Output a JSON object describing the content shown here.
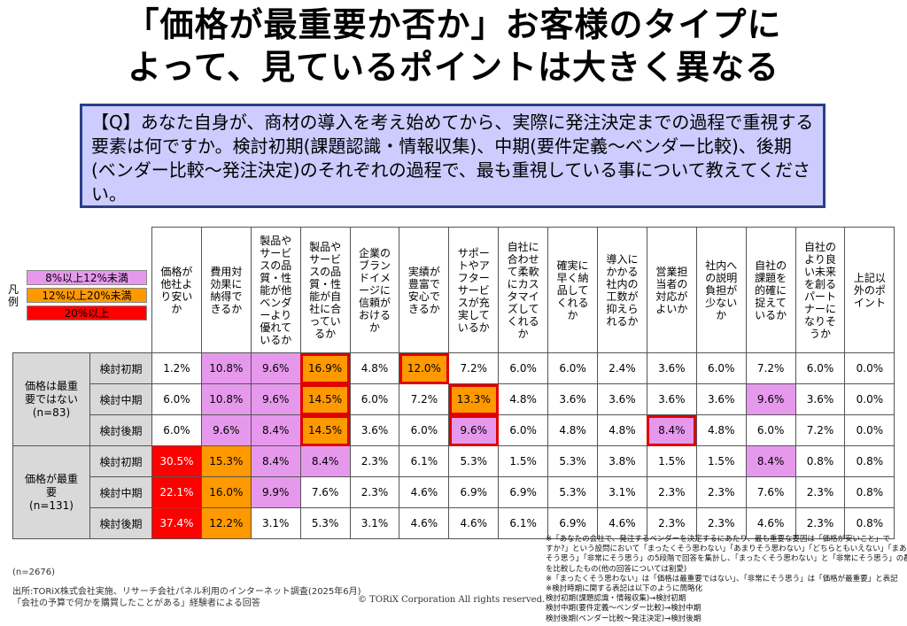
{
  "title": {
    "line1": "「価格が最重要か否か」お客様のタイプに",
    "line2": "よって、見ているポイントは大きく異なる"
  },
  "question": "【Q】あなた自身が、商材の導入を考え始めてから、実際に発注決定までの過程で重視する要素は何ですか。検討初期(課題認識・情報収集)、中期(要件定義〜ベンダー比較)、後期(ベンダー比較〜発注決定)のそれぞれの過程で、最も重視している事について教えてください。",
  "legend": {
    "label": "凡例",
    "items": [
      {
        "text": "8%以上12%未満",
        "color": "#e699ec"
      },
      {
        "text": "12%以上20%未満",
        "color": "#ff9900"
      },
      {
        "text": "20%以上",
        "color": "#ff0000"
      }
    ]
  },
  "chart_data": {
    "type": "table",
    "columns": [
      "価格が他社より安いか",
      "費用対効果に納得できるか",
      "製品やサービスの品質・性能が他ベンダーより優れているか",
      "製品やサービスの品質・性能が自社に合っているか",
      "企業のブランドイメージに信頼がおけるか",
      "実績が豊富で安心できるか",
      "サポートやアフターサービスが充実しているか",
      "自社に合わせて柔軟にカスタマイズしてくれるか",
      "確実に早く納品してくれるか",
      "導入にかかる社内の工数が抑えられるか",
      "営業担当者の対応がよいか",
      "社内への説明負担が少ないか",
      "自社の課題を的確に捉えているか",
      "自社のより良い未来を創るパートナーになりそうか",
      "上記以外のポイント"
    ],
    "groups": [
      {
        "name": "価格は最重要ではない",
        "n": "(n=83)",
        "rows": [
          {
            "phase": "検討初期",
            "values": [
              "1.2%",
              "10.8%",
              "9.6%",
              "16.9%",
              "4.8%",
              "12.0%",
              "7.2%",
              "6.0%",
              "6.0%",
              "2.4%",
              "3.6%",
              "6.0%",
              "7.2%",
              "6.0%",
              "0.0%"
            ],
            "highlight": [
              3,
              5
            ]
          },
          {
            "phase": "検討中期",
            "values": [
              "6.0%",
              "10.8%",
              "9.6%",
              "14.5%",
              "6.0%",
              "7.2%",
              "13.3%",
              "4.8%",
              "3.6%",
              "3.6%",
              "3.6%",
              "3.6%",
              "9.6%",
              "3.6%",
              "0.0%"
            ],
            "highlight": [
              3,
              6
            ]
          },
          {
            "phase": "検討後期",
            "values": [
              "6.0%",
              "9.6%",
              "8.4%",
              "14.5%",
              "3.6%",
              "6.0%",
              "9.6%",
              "6.0%",
              "4.8%",
              "4.8%",
              "8.4%",
              "4.8%",
              "6.0%",
              "7.2%",
              "0.0%"
            ],
            "highlight": [
              3,
              6,
              10
            ]
          }
        ]
      },
      {
        "name": "価格が最重要",
        "n": "(n=131)",
        "rows": [
          {
            "phase": "検討初期",
            "values": [
              "30.5%",
              "15.3%",
              "8.4%",
              "8.4%",
              "2.3%",
              "6.1%",
              "5.3%",
              "1.5%",
              "5.3%",
              "3.8%",
              "1.5%",
              "1.5%",
              "8.4%",
              "0.8%",
              "0.8%"
            ],
            "highlight": []
          },
          {
            "phase": "検討中期",
            "values": [
              "22.1%",
              "16.0%",
              "9.9%",
              "7.6%",
              "2.3%",
              "4.6%",
              "6.9%",
              "6.9%",
              "5.3%",
              "3.1%",
              "2.3%",
              "2.3%",
              "7.6%",
              "2.3%",
              "0.8%"
            ],
            "highlight": []
          },
          {
            "phase": "検討後期",
            "values": [
              "37.4%",
              "12.2%",
              "3.1%",
              "5.3%",
              "3.1%",
              "4.6%",
              "4.6%",
              "6.1%",
              "6.9%",
              "4.6%",
              "2.3%",
              "2.3%",
              "4.6%",
              "2.3%",
              "0.8%"
            ],
            "highlight": []
          }
        ]
      }
    ]
  },
  "footer": {
    "n_total": "(n=2676)",
    "source": "出所:TORiX株式会社実施、リサーチ会社パネル利用のインターネット調査(2025年6月)",
    "respondents": "「会社の予算で何かを購買したことがある」経験者による回答",
    "copyright": "© TORiX Corporation All rights reserved."
  },
  "notes": [
    "※「あなたの会社で、発注するベンダーを決定するにあたり、最も重要な要因は「価格が安いこと」で",
    "すか?」という設問において「まったくそう思わない」「あまりそう思わない」「どちらともいえない」「まあ",
    "そう思う」「非常にそう思う」の5段階で回答を集計し、「まったくそう思わない」と「非常にそう思う」の群",
    "を比較したもの(他の回答については割愛)",
    "※「まったくそう思わない」は「価格は最重要ではない」、「非常にそう思う」は「価格が最重要」と表記",
    "※検討時期に関する表記は以下のように簡略化",
    "検討初期(課題認識・情報収集)→検討初期",
    "検討中期(要件定義〜ベンダー比較)→検討中期",
    "検討後期(ベンダー比較〜発注決定)→検討後期"
  ]
}
